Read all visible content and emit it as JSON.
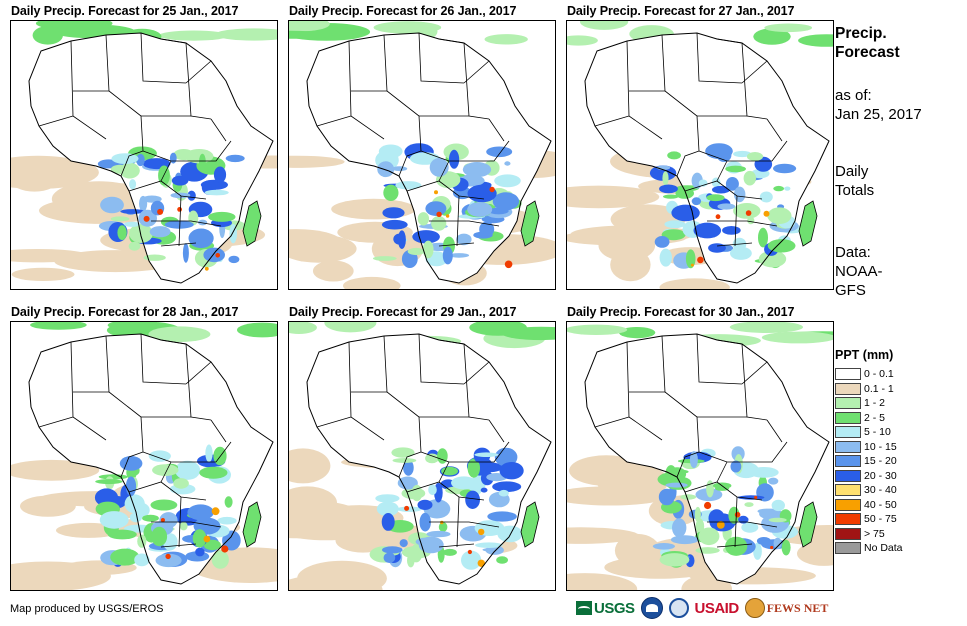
{
  "panels": [
    {
      "title": "Daily Precip. Forecast for 25 Jan., 2017"
    },
    {
      "title": "Daily Precip. Forecast for 26 Jan., 2017"
    },
    {
      "title": "Daily Precip. Forecast for 27 Jan., 2017"
    },
    {
      "title": "Daily Precip. Forecast for 28 Jan., 2017"
    },
    {
      "title": "Daily Precip. Forecast for 29 Jan., 2017"
    },
    {
      "title": "Daily Precip. Forecast for 30 Jan., 2017"
    }
  ],
  "sidebar": {
    "heading_line1": "Precip.",
    "heading_line2": "Forecast",
    "asof_label": "as of:",
    "asof_date": "Jan 25, 2017",
    "totals_line1": "Daily",
    "totals_line2": "Totals",
    "data_line1": "Data:",
    "data_line2": "NOAA-",
    "data_line3": "GFS"
  },
  "legend": {
    "title": "PPT (mm)",
    "items": [
      {
        "label": "0 - 0.1",
        "color": "#ffffff"
      },
      {
        "label": "0.1 - 1",
        "color": "#ecd8bc"
      },
      {
        "label": "1 - 2",
        "color": "#b4f0b0"
      },
      {
        "label": "2 - 5",
        "color": "#6fe070"
      },
      {
        "label": "5 - 10",
        "color": "#b4ecf4"
      },
      {
        "label": "10 - 15",
        "color": "#8cbcf0"
      },
      {
        "label": "15 - 20",
        "color": "#5a94ec"
      },
      {
        "label": "20 - 30",
        "color": "#2a5ee8"
      },
      {
        "label": "30 - 40",
        "color": "#ffe070"
      },
      {
        "label": "40 - 50",
        "color": "#f8a000"
      },
      {
        "label": "50 - 75",
        "color": "#f03c00"
      },
      {
        "label": "> 75",
        "color": "#a01414"
      },
      {
        "label": "No Data",
        "color": "#9a9a9a"
      }
    ]
  },
  "credit": "Map produced by USGS/EROS",
  "logos": {
    "usgs": "USGS",
    "usaid_a": "USAID",
    "fews": "FEWS NET"
  }
}
